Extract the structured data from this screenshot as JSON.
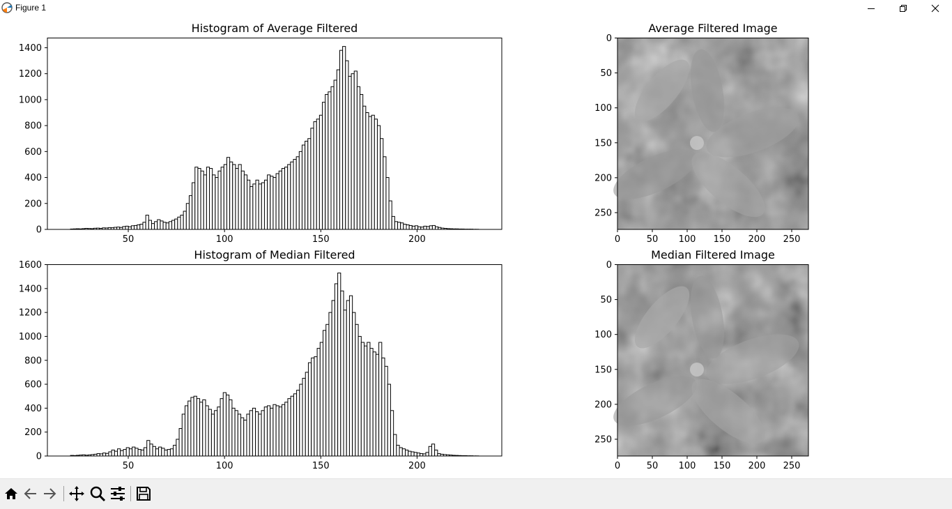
{
  "window": {
    "title": "Figure 1"
  },
  "toolbar": {
    "icons": [
      "home-icon",
      "back-icon",
      "forward-icon",
      "pan-icon",
      "zoom-icon",
      "configure-icon",
      "save-icon"
    ]
  },
  "colors": {
    "toolbar_bg": "#f0f0f0",
    "bar_fill": "#ffffff",
    "bar_edge": "#000000"
  },
  "chart_data": [
    {
      "type": "bar",
      "title": "Histogram of Average Filtered",
      "xlabel": "",
      "ylabel": "",
      "xlim": [
        8,
        244
      ],
      "ylim": [
        0,
        1475
      ],
      "x_ticks": [
        "50",
        "100",
        "150",
        "200"
      ],
      "y_ticks": [
        "0",
        "200",
        "400",
        "600",
        "800",
        "1000",
        "1200",
        "1400"
      ],
      "x_start": 20,
      "values": [
        3,
        4,
        5,
        4,
        6,
        8,
        7,
        6,
        9,
        10,
        8,
        12,
        11,
        14,
        13,
        16,
        18,
        15,
        22,
        25,
        20,
        28,
        30,
        35,
        40,
        55,
        110,
        70,
        45,
        60,
        75,
        65,
        55,
        50,
        60,
        70,
        80,
        95,
        110,
        140,
        200,
        260,
        360,
        480,
        470,
        450,
        420,
        480,
        470,
        420,
        400,
        450,
        480,
        500,
        555,
        520,
        500,
        470,
        500,
        450,
        420,
        380,
        330,
        350,
        380,
        350,
        360,
        380,
        420,
        410,
        400,
        430,
        450,
        470,
        480,
        500,
        520,
        540,
        560,
        600,
        650,
        680,
        700,
        780,
        830,
        850,
        880,
        980,
        1040,
        1060,
        1100,
        1150,
        1230,
        1380,
        1410,
        1300,
        1180,
        1200,
        1220,
        1100,
        1040,
        950,
        900,
        870,
        880,
        850,
        800,
        700,
        560,
        400,
        220,
        100,
        60,
        55,
        50,
        40,
        35,
        30,
        25,
        28,
        20,
        18,
        25,
        22,
        28,
        30,
        20,
        15,
        10,
        8,
        6,
        5,
        4,
        4,
        3,
        3,
        2,
        2,
        2,
        1,
        1
      ]
    },
    {
      "type": "bar",
      "title": "Histogram of Median Filtered",
      "xlabel": "",
      "ylabel": "",
      "xlim": [
        8,
        244
      ],
      "ylim": [
        0,
        1600
      ],
      "x_ticks": [
        "50",
        "100",
        "150",
        "200"
      ],
      "y_ticks": [
        "0",
        "200",
        "400",
        "600",
        "800",
        "1000",
        "1200",
        "1400",
        "1600"
      ],
      "x_start": 20,
      "values": [
        5,
        4,
        6,
        8,
        10,
        7,
        9,
        12,
        15,
        20,
        18,
        25,
        22,
        35,
        50,
        40,
        60,
        45,
        55,
        70,
        60,
        75,
        65,
        55,
        50,
        70,
        130,
        100,
        80,
        60,
        75,
        65,
        50,
        55,
        60,
        90,
        140,
        230,
        350,
        420,
        460,
        490,
        500,
        480,
        450,
        470,
        420,
        390,
        350,
        380,
        410,
        480,
        530,
        510,
        470,
        400,
        380,
        350,
        320,
        300,
        350,
        380,
        400,
        370,
        350,
        380,
        410,
        420,
        400,
        430,
        420,
        410,
        430,
        450,
        480,
        500,
        520,
        550,
        600,
        650,
        700,
        780,
        820,
        830,
        900,
        950,
        1050,
        1100,
        1200,
        1300,
        1440,
        1530,
        1380,
        1220,
        1300,
        1340,
        1200,
        1100,
        1000,
        950,
        920,
        950,
        900,
        870,
        850,
        950,
        820,
        750,
        600,
        380,
        180,
        90,
        70,
        60,
        50,
        40,
        35,
        30,
        25,
        20,
        18,
        30,
        80,
        100,
        50,
        20,
        15,
        12,
        10,
        8,
        6,
        5,
        4,
        3,
        3,
        2,
        2,
        1,
        1
      ]
    }
  ],
  "image_axes": [
    {
      "title": "Average Filtered Image",
      "x_ticks": [
        "0",
        "50",
        "100",
        "150",
        "200",
        "250"
      ],
      "y_ticks": [
        "0",
        "50",
        "100",
        "150",
        "200",
        "250"
      ],
      "range": [
        0,
        274
      ]
    },
    {
      "title": "Median Filtered Image",
      "x_ticks": [
        "0",
        "50",
        "100",
        "150",
        "200",
        "250"
      ],
      "y_ticks": [
        "0",
        "50",
        "100",
        "150",
        "200",
        "250"
      ],
      "range": [
        0,
        274
      ]
    }
  ]
}
